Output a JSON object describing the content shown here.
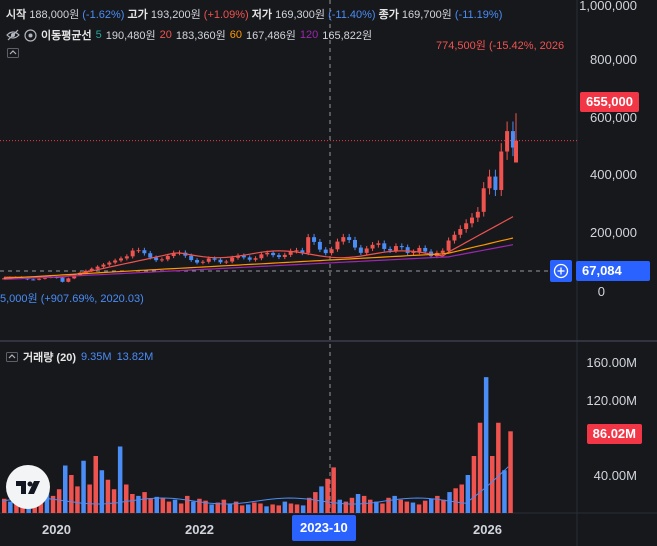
{
  "ohlc": {
    "open_label": "시작",
    "open_value": "188,000원",
    "open_change": "(-1.62%)",
    "high_label": "고가",
    "high_value": "193,200원",
    "high_change": "(+1.09%)",
    "low_label": "저가",
    "low_value": "169,300원",
    "low_change": "(-11.40%)",
    "close_label": "종가",
    "close_value": "169,700원",
    "close_change": "(-11.19%)"
  },
  "ma": {
    "label": "이동평균선",
    "items": [
      {
        "period": "5",
        "value": "190,480원",
        "color": "#26a69a"
      },
      {
        "period": "20",
        "value": "183,360원",
        "color": "#ef5350"
      },
      {
        "period": "60",
        "value": "167,486원",
        "color": "#ff9800"
      },
      {
        "period": "120",
        "value": "165,822원",
        "color": "#9c27b0"
      }
    ]
  },
  "annotations": {
    "high": "774,500원 (-15.42%, 2026",
    "low": "5,000원 (+907.69%, 2020.03)"
  },
  "price_axis": {
    "ticks": [
      "1,000,000",
      "800,000",
      "600,000",
      "400,000",
      "200,000",
      "0"
    ],
    "current_price": "655,000",
    "crosshair_price": "67,084"
  },
  "volume": {
    "label": "거래량 (20)",
    "v1": "9.35M",
    "v2": "13.82M",
    "ticks": [
      "160.00M",
      "120.00M",
      "40.00M"
    ],
    "current": "86.02M"
  },
  "time_axis": {
    "labels": [
      "2020",
      "2022",
      "2026"
    ],
    "crosshair": "2023-10"
  },
  "colors": {
    "up": "#ef5350",
    "down": "#4a8df6",
    "background": "#17181c",
    "accent": "#2962ff"
  },
  "icons": [
    "eye-off-icon",
    "settings-icon",
    "add-icon",
    "tradingview-logo"
  ]
}
